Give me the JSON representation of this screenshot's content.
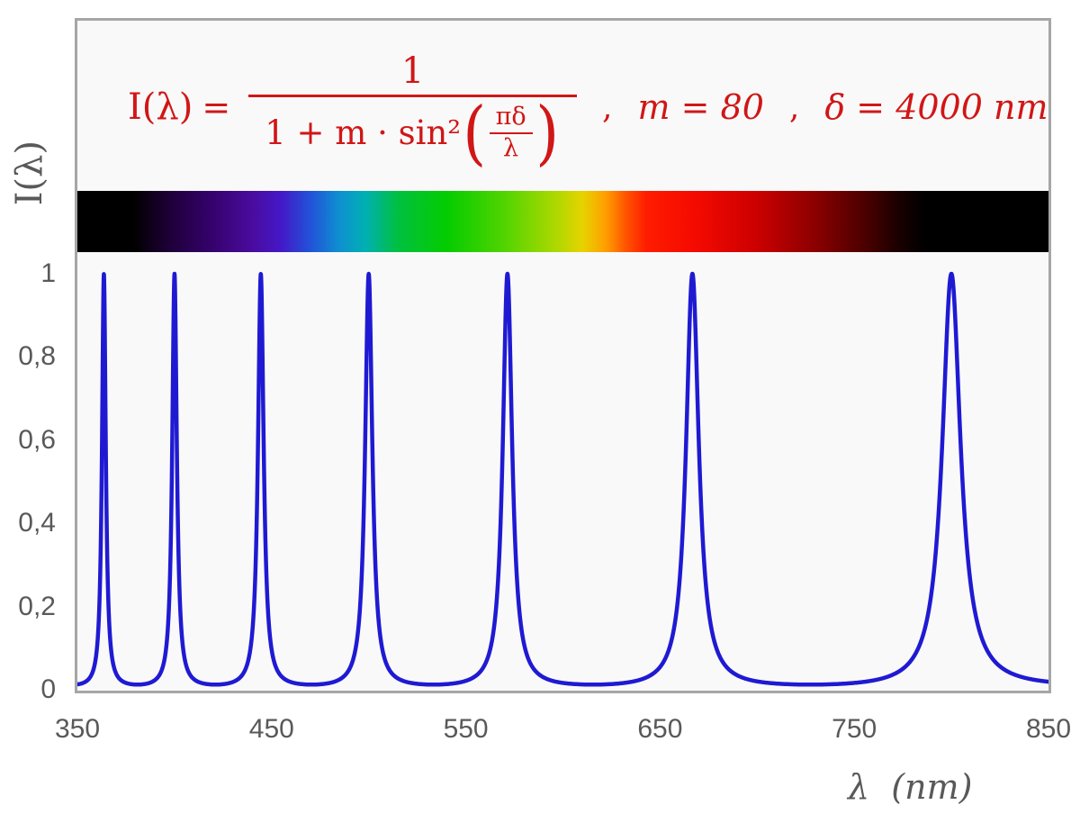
{
  "colors": {
    "formula_red": "#d11616",
    "tick_gray": "#595959",
    "frame_border": "#a6a6a6",
    "curve_blue": "#1f1ad2",
    "plot_background": "#f9f9f9"
  },
  "formula": {
    "lhs": "I(λ)",
    "equals": "=",
    "numerator": "1",
    "denominator_prefix": "1 + m · sin²",
    "paren_open": "(",
    "paren_close": ")",
    "inner_numerator": "πδ",
    "inner_denominator": "λ",
    "separator1": ",",
    "param_m": "m = 80",
    "separator2": ",",
    "param_delta": "δ = 4000 nm"
  },
  "axes": {
    "y_title": "I(λ)",
    "x_title": "λ  (nm)",
    "y_ticks": [
      {
        "value": 0,
        "label": "0"
      },
      {
        "value": 0.2,
        "label": "0,2"
      },
      {
        "value": 0.4,
        "label": "0,4"
      },
      {
        "value": 0.6,
        "label": "0,6"
      },
      {
        "value": 0.8,
        "label": "0,8"
      },
      {
        "value": 1,
        "label": "1"
      }
    ],
    "x_ticks": [
      {
        "value": 350,
        "label": "350"
      },
      {
        "value": 450,
        "label": "450"
      },
      {
        "value": 550,
        "label": "550"
      },
      {
        "value": 650,
        "label": "650"
      },
      {
        "value": 750,
        "label": "750"
      },
      {
        "value": 850,
        "label": "850"
      }
    ]
  },
  "chart_data": {
    "type": "line",
    "title": "I(λ) = 1 / (1 + m·sin²(πδ/λ)) ,  m = 80 ,  δ = 4000 nm",
    "xlabel": "λ (nm)",
    "ylabel": "I(λ)",
    "x_range_nm": [
      350,
      850
    ],
    "y_range": [
      0,
      1
    ],
    "x_tick_values": [
      350,
      450,
      550,
      650,
      750,
      850
    ],
    "y_tick_values": [
      0,
      0.2,
      0.4,
      0.6,
      0.8,
      1
    ],
    "parameters": {
      "m": 80,
      "delta_nm": 4000
    },
    "sample_step_nm": 0.1,
    "peaks_nm": [
      363.64,
      400.0,
      444.44,
      500.0,
      571.43,
      666.67,
      800.0
    ],
    "peak_intensity": 1.0,
    "background_min_intensity": 0.0123,
    "curve_color": "#1f1ad2",
    "grid": false,
    "legend": false
  },
  "spectrum_bar": {
    "gradient_stops": [
      {
        "nm": 350,
        "color": "#000000"
      },
      {
        "nm": 379,
        "color": "#000000"
      },
      {
        "nm": 388,
        "color": "#10001c"
      },
      {
        "nm": 400,
        "color": "#21003e"
      },
      {
        "nm": 420,
        "color": "#36026e"
      },
      {
        "nm": 440,
        "color": "#4a0b9e"
      },
      {
        "nm": 455,
        "color": "#4418c8"
      },
      {
        "nm": 470,
        "color": "#2153d8"
      },
      {
        "nm": 485,
        "color": "#0e90d0"
      },
      {
        "nm": 498,
        "color": "#00afb4"
      },
      {
        "nm": 515,
        "color": "#00c040"
      },
      {
        "nm": 540,
        "color": "#04cc00"
      },
      {
        "nm": 570,
        "color": "#52d400"
      },
      {
        "nm": 595,
        "color": "#a8d800"
      },
      {
        "nm": 610,
        "color": "#e6d300"
      },
      {
        "nm": 622,
        "color": "#ff9e00"
      },
      {
        "nm": 632,
        "color": "#ff5700"
      },
      {
        "nm": 643,
        "color": "#ff1c00"
      },
      {
        "nm": 668,
        "color": "#f50a00"
      },
      {
        "nm": 700,
        "color": "#cb0000"
      },
      {
        "nm": 730,
        "color": "#8b0000"
      },
      {
        "nm": 756,
        "color": "#4a0000"
      },
      {
        "nm": 773,
        "color": "#1a0000"
      },
      {
        "nm": 786,
        "color": "#000000"
      },
      {
        "nm": 850,
        "color": "#000000"
      }
    ]
  }
}
